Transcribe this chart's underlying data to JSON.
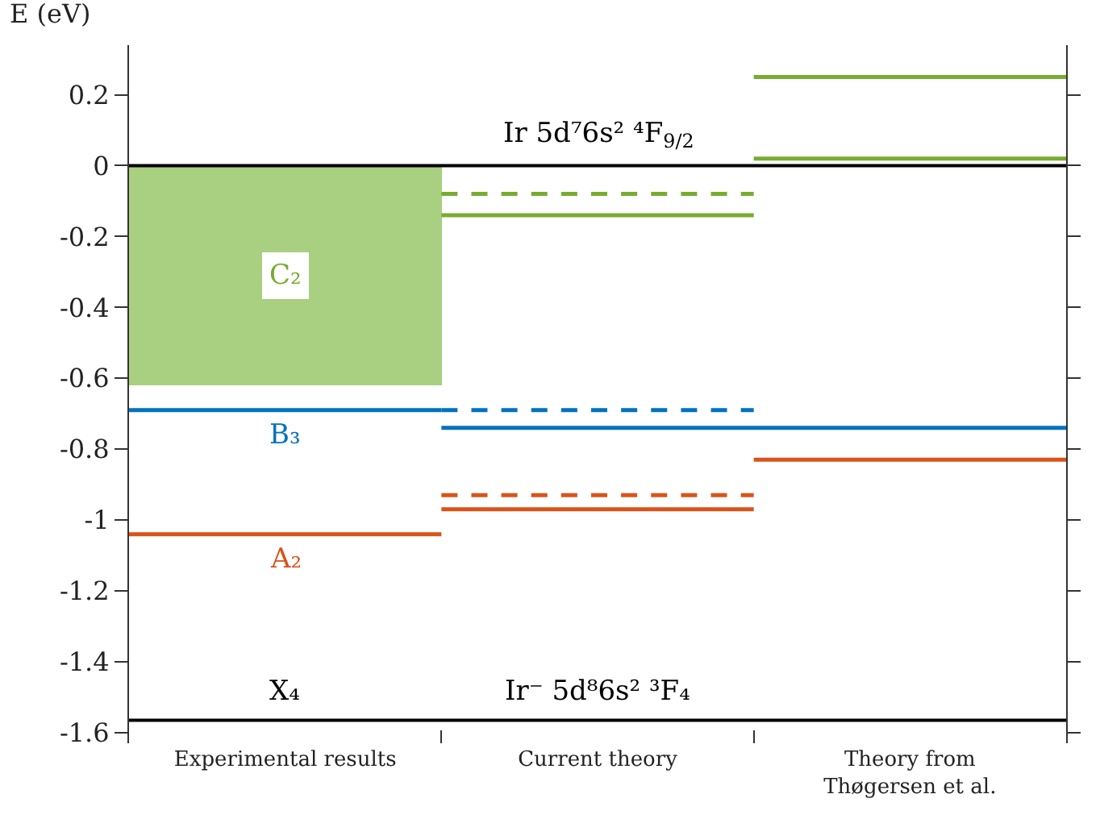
{
  "chart_data": {
    "type": "line",
    "ylabel": "E (eV)",
    "categories": [
      null,
      "Experimental results",
      null,
      "Current theory",
      null,
      "Theory from\nThøgersen et al.",
      null
    ],
    "series": [
      {
        "type": "bar",
        "name": "C₂",
        "color": "#a9cf80",
        "base": [
          null,
          0,
          null,
          null,
          null,
          null,
          null
        ],
        "values": [
          null,
          -0.62,
          null,
          null,
          null,
          null,
          null
        ]
      },
      {
        "color": "#77ac30",
        "line_style": "solid",
        "values": [
          null,
          null,
          -0.14,
          -0.14,
          -0.14,
          null,
          null
        ]
      },
      {
        "color": "#77ac30",
        "line_style": "solid",
        "values": [
          null,
          null,
          null,
          null,
          0.02,
          0.02,
          0.02
        ]
      },
      {
        "color": "#77ac30",
        "line_style": "solid",
        "values": [
          null,
          null,
          null,
          null,
          0.25,
          0.25,
          0.25
        ]
      },
      {
        "color": "#77ac30",
        "line_style": "dashed",
        "values": [
          null,
          null,
          -0.08,
          -0.08,
          -0.08,
          null,
          null
        ]
      },
      {
        "name": "B₃",
        "color": "#0072bd",
        "line_style": "solid",
        "values": [
          -0.69,
          -0.69,
          -0.69,
          null,
          null,
          null,
          null
        ]
      },
      {
        "color": "#0072bd",
        "line_style": "solid",
        "values": [
          null,
          null,
          -0.74,
          -0.74,
          -0.74,
          -0.74,
          -0.74
        ]
      },
      {
        "color": "#0072bd",
        "line_style": "dashed",
        "values": [
          null,
          null,
          -0.69,
          -0.69,
          -0.69,
          null,
          null
        ]
      },
      {
        "name": "A₂",
        "color": "#d95319",
        "line_style": "solid",
        "values": [
          -1.04,
          -1.04,
          -1.04,
          null,
          null,
          null,
          null
        ]
      },
      {
        "color": "#d95319",
        "line_style": "solid",
        "values": [
          null,
          null,
          -0.97,
          -0.97,
          -0.97,
          null,
          null
        ]
      },
      {
        "color": "#d95319",
        "line_style": "solid",
        "values": [
          null,
          null,
          null,
          null,
          -0.83,
          -0.83,
          -0.83
        ]
      },
      {
        "color": "#d95319",
        "line_style": "dashed",
        "values": [
          null,
          null,
          -0.93,
          -0.93,
          -0.93,
          null,
          null
        ]
      }
    ],
    "ref_lines": [
      {
        "axis": "y",
        "value": 0,
        "label": "Ir 5d⁷6s² ⁴F$_{9/2}$",
        "color": "#000000"
      },
      {
        "axis": "y",
        "value": -1.565,
        "label": "Ir⁻ 5d⁸6s² ³F₄",
        "color": "#000000"
      }
    ],
    "annotations": [
      {
        "text": "X₄",
        "x": "Experimental results",
        "y": -1.565
      }
    ],
    "ylim": [
      -1.63,
      0.34
    ],
    "yticks": [
      -1.6,
      -1.4,
      -1.2,
      -1,
      -0.8,
      -0.6,
      -0.4,
      -0.2,
      0,
      0.2
    ]
  }
}
